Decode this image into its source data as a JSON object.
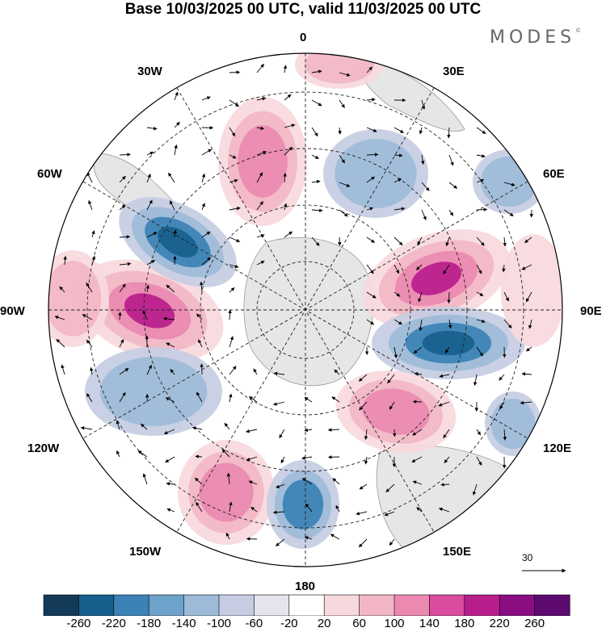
{
  "title": "Base 10/03/2025 00 UTC, valid 11/03/2025 00 UTC",
  "brand": {
    "text": "MODES",
    "mark": "©"
  },
  "lon_labels": {
    "n": "0",
    "nne": "30E",
    "ene": "60E",
    "e": "90E",
    "ese": "120E",
    "sse": "150E",
    "s": "180",
    "ssw": "150W",
    "wsw": "120W",
    "w": "90W",
    "wnw": "60W",
    "nnw": "30W"
  },
  "vector_ref": {
    "label": "30"
  },
  "colorbar": {
    "ticks": [
      "-260",
      "-220",
      "-180",
      "-140",
      "-100",
      "-60",
      "-20",
      "20",
      "60",
      "100",
      "140",
      "180",
      "220",
      "260"
    ],
    "colors": [
      "#143a5a",
      "#175f8c",
      "#3b82b6",
      "#6da2cb",
      "#9dbbd8",
      "#c6cde3",
      "#e4e4ef",
      "#ffffff",
      "#f7d9dd",
      "#f2b6c6",
      "#eb89b1",
      "#d94c9f",
      "#b81d8c",
      "#8a0d82",
      "#5c0a6f"
    ]
  },
  "map_colors": {
    "land": "#e6e6e6",
    "blue_weak": "#c6cde3",
    "blue_mid": "#9dbbd8",
    "blue_strong": "#3b82b6",
    "blue_core": "#175f8c",
    "pink_weak": "#f7d9dd",
    "pink_mid": "#f2b6c6",
    "pink_strong": "#eb89b1",
    "pink_core": "#b81d8c"
  }
}
